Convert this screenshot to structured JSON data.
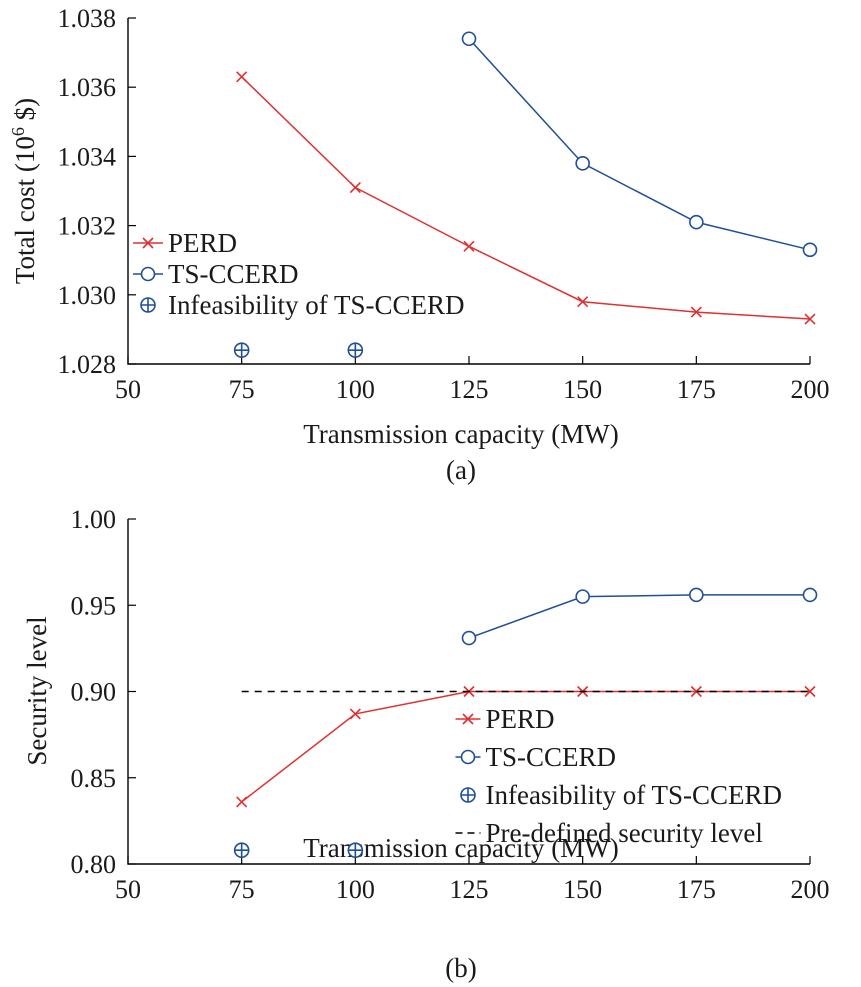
{
  "chart_data": [
    {
      "type": "line",
      "panel_label": "(a)",
      "xlabel": "Transmission capacity (MW)",
      "ylabel": "Total cost (10",
      "ylabel_sup": "6",
      "ylabel_tail": " $)",
      "xlim": [
        50,
        200
      ],
      "ylim": [
        1.028,
        1.038
      ],
      "xticks": [
        50,
        75,
        100,
        125,
        150,
        175,
        200
      ],
      "xtick_labels": [
        "50",
        "75",
        "100",
        "125",
        "150",
        "175",
        "200"
      ],
      "yticks": [
        1.028,
        1.03,
        1.032,
        1.034,
        1.036,
        1.038
      ],
      "ytick_labels": [
        "1.028",
        "1.030",
        "1.032",
        "1.034",
        "1.036",
        "1.038"
      ],
      "legend_position": "left",
      "series": [
        {
          "name": "PERD",
          "color": "#e03030",
          "marker": "x",
          "line": "solid",
          "x": [
            75,
            100,
            125,
            150,
            175,
            200
          ],
          "y": [
            1.0363,
            1.0331,
            1.0314,
            1.0298,
            1.0295,
            1.0293
          ]
        },
        {
          "name": "TS-CCERD",
          "color": "#1f4e9a",
          "marker": "o",
          "line": "solid",
          "x": [
            125,
            150,
            175,
            200
          ],
          "y": [
            1.0374,
            1.0338,
            1.0321,
            1.0313
          ]
        },
        {
          "name": "Infeasibility of TS-CCERD",
          "color": "#1f4e9a",
          "marker": "oplus",
          "line": "none",
          "x": [
            75,
            100
          ],
          "y": [
            1.0284,
            1.0284
          ]
        }
      ]
    },
    {
      "type": "line",
      "panel_label": "(b)",
      "xlabel": "Transmission capacity (MW)",
      "ylabel": "Security level",
      "xlim": [
        50,
        200
      ],
      "ylim": [
        0.8,
        1.0
      ],
      "xticks": [
        50,
        75,
        100,
        125,
        150,
        175,
        200
      ],
      "xtick_labels": [
        "50",
        "75",
        "100",
        "125",
        "150",
        "175",
        "200"
      ],
      "yticks": [
        0.8,
        0.85,
        0.9,
        0.95,
        1.0
      ],
      "ytick_labels": [
        "0.80",
        "0.85",
        "0.90",
        "0.95",
        "1.00"
      ],
      "legend_position": "bottom-right",
      "series": [
        {
          "name": "PERD",
          "color": "#e03030",
          "marker": "x",
          "line": "solid",
          "x": [
            75,
            100,
            125,
            150,
            175,
            200
          ],
          "y": [
            0.836,
            0.887,
            0.9,
            0.9,
            0.9,
            0.9
          ]
        },
        {
          "name": "TS-CCERD",
          "color": "#1f4e9a",
          "marker": "o",
          "line": "solid",
          "x": [
            125,
            150,
            175,
            200
          ],
          "y": [
            0.931,
            0.955,
            0.956,
            0.956
          ]
        },
        {
          "name": "Infeasibility of TS-CCERD",
          "color": "#1f4e9a",
          "marker": "oplus",
          "line": "none",
          "x": [
            75,
            100
          ],
          "y": [
            0.808,
            0.808
          ]
        },
        {
          "name": "Pre-defined security level",
          "color": "#000000",
          "marker": "none",
          "line": "dashed",
          "x": [
            75,
            200
          ],
          "y": [
            0.9,
            0.9
          ]
        }
      ]
    }
  ]
}
